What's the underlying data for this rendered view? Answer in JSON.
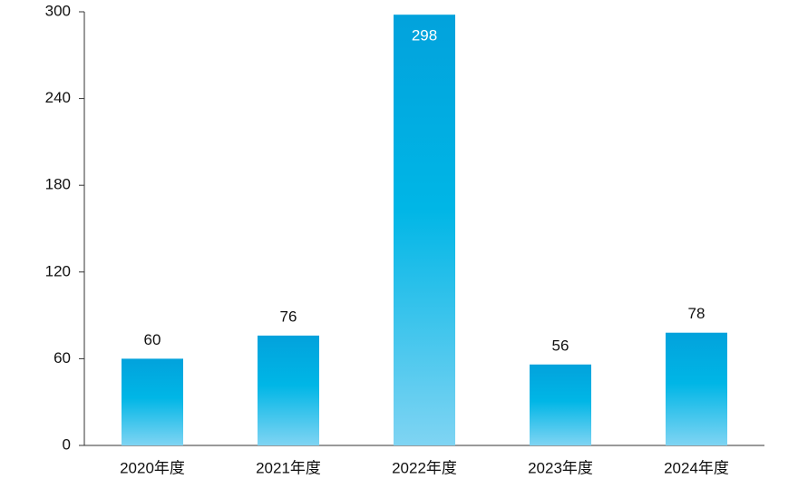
{
  "chart_data": {
    "type": "bar",
    "categories": [
      "2020年度",
      "2021年度",
      "2022年度",
      "2023年度",
      "2024年度"
    ],
    "values": [
      60,
      76,
      298,
      56,
      78
    ],
    "color": "#00b4e6",
    "ylim": [
      0,
      300
    ],
    "yticks": [
      0,
      60,
      120,
      180,
      240,
      300
    ],
    "grid": false
  }
}
